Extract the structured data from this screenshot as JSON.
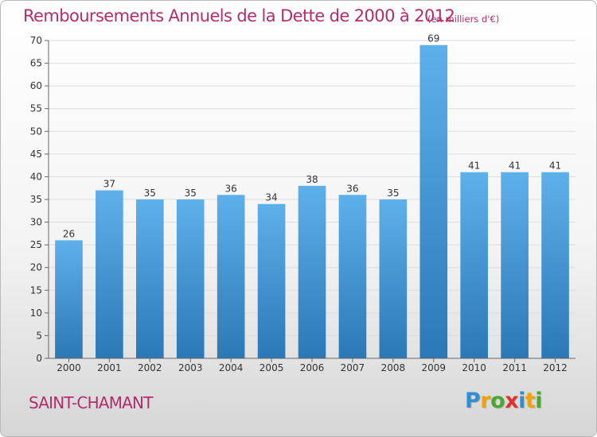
{
  "header": {
    "title": "Remboursements Annuels de la Dette de 2000 à 2012",
    "subtitle": "(en milliers d'€)"
  },
  "footer": {
    "commune": "SAINT-CHAMANT",
    "logo_letters": [
      {
        "char": "P",
        "color": "#2f8fd6"
      },
      {
        "char": "r",
        "color": "#f2a100"
      },
      {
        "char": "o",
        "color": "#4aa832"
      },
      {
        "char": "x",
        "color": "#e0312f"
      },
      {
        "char": "i",
        "color": "#2f8fd6"
      },
      {
        "char": "t",
        "color": "#f2a100"
      },
      {
        "char": "i",
        "color": "#4aa832"
      }
    ]
  },
  "colors": {
    "bar_top": "#5eb0ea",
    "bar_bottom": "#2b78b7",
    "title": "#b22d6b",
    "grid": "#dddddd"
  },
  "chart_data": {
    "type": "bar",
    "title": "Remboursements Annuels de la Dette de 2000 à 2012",
    "subtitle": "(en milliers d'€)",
    "xlabel": "",
    "ylabel": "",
    "categories": [
      "2000",
      "2001",
      "2002",
      "2003",
      "2004",
      "2005",
      "2006",
      "2007",
      "2008",
      "2009",
      "2010",
      "2011",
      "2012"
    ],
    "values": [
      26,
      37,
      35,
      35,
      36,
      34,
      38,
      36,
      35,
      69,
      41,
      41,
      41
    ],
    "data_labels": [
      "26",
      "37",
      "35",
      "35",
      "36",
      "34",
      "38",
      "36",
      "35",
      "69",
      "41",
      "41",
      "41"
    ],
    "ylim": [
      0,
      70
    ],
    "yticks": [
      0,
      5,
      10,
      15,
      20,
      25,
      30,
      35,
      40,
      45,
      50,
      55,
      60,
      65,
      70
    ],
    "grid": true
  }
}
